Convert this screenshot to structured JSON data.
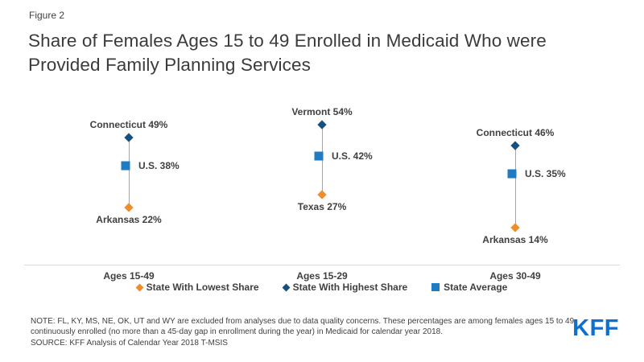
{
  "figure": {
    "label": "Figure 2",
    "title": "Share of Females Ages 15 to 49 Enrolled in Medicaid Who were Provided Family Planning Services"
  },
  "chart_data": {
    "type": "scatter",
    "subtype": "high-low-range-dot-plot",
    "title": "Share of Females Ages 15 to 49 Enrolled in Medicaid Who were Provided Family Planning Services",
    "categories": [
      "Ages 15-49",
      "Ages 15-29",
      "Ages 30-49"
    ],
    "series": [
      {
        "name": "State With Lowest Share",
        "marker": "diamond",
        "color": "#EF8C2B",
        "label_position": "below",
        "values": [
          22,
          27,
          14
        ],
        "point_labels": [
          "Arkansas 22%",
          "Texas 27%",
          "Arkansas 14%"
        ]
      },
      {
        "name": "State With Highest Share",
        "marker": "diamond",
        "color": "#17507E",
        "label_position": "above",
        "values": [
          49,
          54,
          46
        ],
        "point_labels": [
          "Connecticut 49%",
          "Vermont 54%",
          "Connecticut 46%"
        ]
      },
      {
        "name": "State Average",
        "marker": "square",
        "color": "#1F7BC2",
        "label_position": "right",
        "values": [
          38,
          42,
          35
        ],
        "point_labels": [
          "U.S. 38%",
          "U.S. 42%",
          "U.S. 35%"
        ]
      }
    ],
    "unit": "%",
    "ylim": [
      0,
      62
    ],
    "grid": false,
    "legend_position": "bottom",
    "connector_color": "#a6a6a6",
    "axis_color": "#d9d9d9"
  },
  "footer": {
    "note": "NOTE: FL, KY, MS, NE, OK, UT and WY are excluded from analyses due to data quality concerns. These percentages are among females ages 15 to 49 continuously enrolled (no more than a 45-day gap in enrollment during the year) in Medicaid for calendar year 2018.",
    "source": "SOURCE: KFF Analysis of Calendar Year 2018 T-MSIS",
    "logo_text": "KFF",
    "logo_color": "#0D6FCE"
  }
}
